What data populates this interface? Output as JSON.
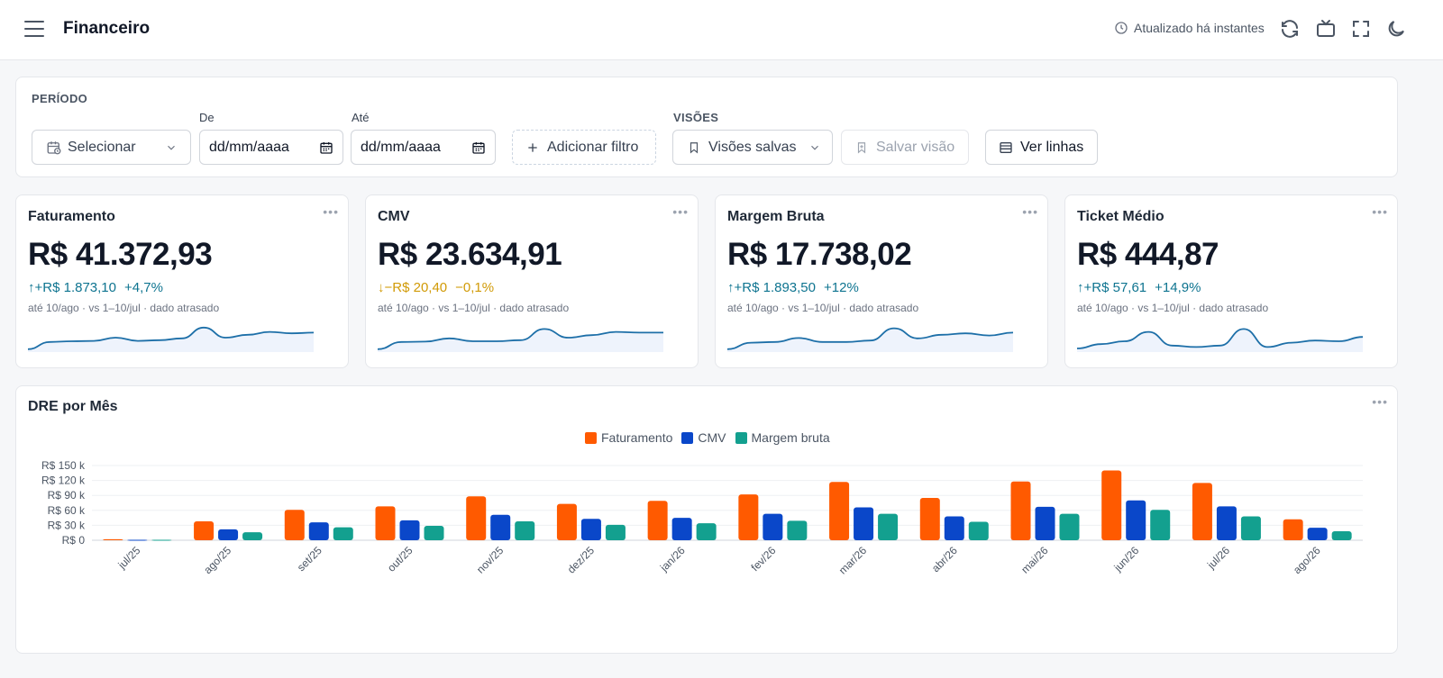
{
  "header": {
    "title": "Financeiro",
    "updated_text": "Atualizado há instantes",
    "icons": [
      "menu-icon",
      "clock-icon",
      "refresh-icon",
      "tv-icon",
      "fullscreen-icon",
      "moon-icon"
    ]
  },
  "filters": {
    "period_label": "PERÍODO",
    "period_select": "Selecionar",
    "from_label": "De",
    "from_placeholder": "dd/mm/aaaa",
    "to_label": "Até",
    "to_placeholder": "dd/mm/aaaa",
    "add_filter": "Adicionar filtro",
    "views_label": "VISÕES",
    "saved_views": "Visões salvas",
    "save_view": "Salvar visão",
    "see_rows": "Ver linhas"
  },
  "kpis": [
    {
      "title": "Faturamento",
      "value": "R$ 41.372,93",
      "delta_abs": "↑+R$ 1.873,10",
      "delta_pct": "+4,7%",
      "direction": "up",
      "note": "até 10/ago · vs 1–10/jul · dado atrasado",
      "spark": [
        8,
        28,
        30,
        31,
        40,
        31,
        33,
        38,
        68,
        40,
        48,
        56,
        52,
        54
      ]
    },
    {
      "title": "CMV",
      "value": "R$ 23.634,91",
      "delta_abs": "↓−R$ 20,40",
      "delta_pct": "−0,1%",
      "direction": "down",
      "note": "até 10/ago · vs 1–10/jul · dado atrasado",
      "spark": [
        8,
        28,
        29,
        38,
        30,
        30,
        33,
        64,
        40,
        47,
        56,
        54,
        54
      ]
    },
    {
      "title": "Margem Bruta",
      "value": "R$ 17.738,02",
      "delta_abs": "↑+R$ 1.893,50",
      "delta_pct": "+12%",
      "direction": "up",
      "note": "até 10/ago · vs 1–10/jul · dado atrasado",
      "spark": [
        8,
        26,
        28,
        39,
        28,
        28,
        32,
        66,
        38,
        48,
        52,
        46,
        54
      ]
    },
    {
      "title": "Ticket Médio",
      "value": "R$ 444,87",
      "delta_abs": "↑+R$ 57,61",
      "delta_pct": "+14,9%",
      "direction": "up",
      "note": "até 10/ago · vs 1–10/jul · dado atrasado",
      "spark": [
        10,
        22,
        30,
        56,
        18,
        14,
        18,
        64,
        14,
        26,
        32,
        30,
        42
      ]
    }
  ],
  "colors": {
    "faturamento": "#ff5a00",
    "cmv": "#0a47c9",
    "margem": "#13a08f",
    "spark_line": "#1d6fa8",
    "spark_fill": "#eef3fc",
    "up": "#0e7490",
    "down": "#d19a06"
  },
  "chart": {
    "title": "DRE por Mês",
    "chart_data": {
      "type": "bar",
      "title": "DRE por Mês",
      "categories": [
        "jul/25",
        "ago/25",
        "set/25",
        "out/25",
        "nov/25",
        "dez/25",
        "jan/26",
        "fev/26",
        "mar/26",
        "abr/26",
        "mai/26",
        "jun/26",
        "jul/26",
        "ago/26"
      ],
      "series": [
        {
          "name": "Faturamento",
          "values": [
            2000,
            38000,
            61000,
            68000,
            88000,
            73000,
            79000,
            92000,
            117000,
            85000,
            118000,
            140000,
            115000,
            42000
          ]
        },
        {
          "name": "CMV",
          "values": [
            1000,
            22000,
            36000,
            40000,
            51000,
            43000,
            45000,
            53000,
            66000,
            48000,
            67000,
            80000,
            68000,
            25000
          ]
        },
        {
          "name": "Margem bruta",
          "values": [
            1000,
            16000,
            26000,
            29000,
            38000,
            31000,
            34000,
            39000,
            53000,
            37000,
            53000,
            61000,
            48000,
            18000
          ]
        }
      ],
      "ylim": [
        0,
        150000
      ],
      "yticks": [
        "R$ 0",
        "R$ 30 k",
        "R$ 60 k",
        "R$ 90 k",
        "R$ 120 k",
        "R$ 150 k"
      ],
      "xlabel": "",
      "ylabel": "",
      "legend": "top-center",
      "grid": true
    }
  }
}
